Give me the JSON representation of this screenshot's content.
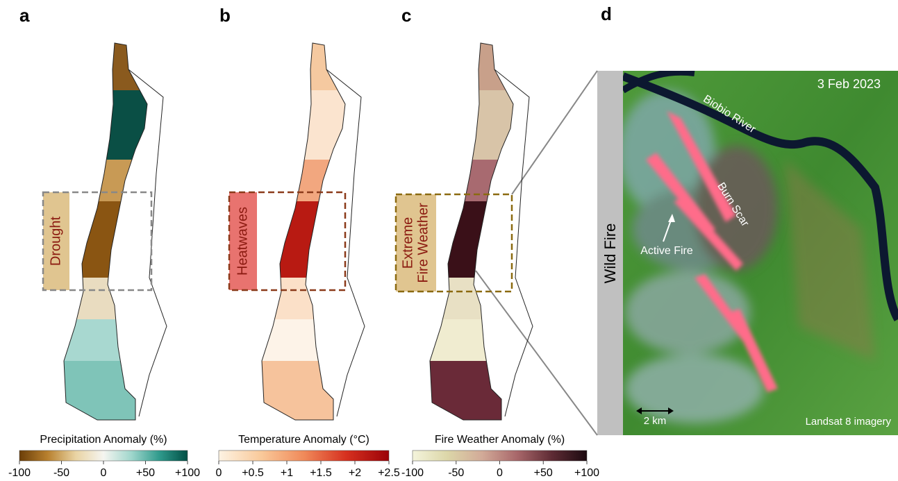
{
  "panels": [
    {
      "letter": "a",
      "label": [
        "Drought"
      ],
      "colorbar": {
        "title": "Precipitation Anomaly (%)",
        "lim": [
          -100,
          100
        ],
        "ticks": [
          -100,
          -50,
          0,
          {
            "value": 50,
            "label": "+50"
          },
          {
            "value": 100,
            "label": "+100"
          }
        ],
        "colors": [
          "#6b3e08",
          "#b8802e",
          "#e9d3a2",
          "#f5f5f0",
          "#9fd6cc",
          "#2f9a8c",
          "#014f45"
        ]
      }
    },
    {
      "letter": "b",
      "label": [
        "Heatwaves"
      ],
      "colorbar": {
        "title": "Temperature Anomaly (°C)",
        "lim": [
          0,
          2.5
        ],
        "ticks": [
          0,
          {
            "value": 0.5,
            "label": "+0.5"
          },
          {
            "value": 1,
            "label": "+1"
          },
          {
            "value": 1.5,
            "label": "+1.5"
          },
          {
            "value": 2,
            "label": "+2"
          },
          {
            "value": 2.5,
            "label": "+2.5"
          }
        ],
        "colors": [
          "#fdf3e3",
          "#f9c99a",
          "#f08a5a",
          "#d6301f",
          "#9b0208"
        ]
      }
    },
    {
      "letter": "c",
      "label": [
        "Extreme",
        "Fire Weather"
      ],
      "colorbar": {
        "title": "Fire Weather Anomaly (%)",
        "lim": [
          -100,
          100
        ],
        "ticks": [
          -100,
          -50,
          0,
          {
            "value": 50,
            "label": "+50"
          },
          {
            "value": 100,
            "label": "+100"
          }
        ],
        "colors": [
          "#f4f4dc",
          "#dcd6a8",
          "#d2aa98",
          "#a8676a",
          "#5e2b34",
          "#1c0a10"
        ]
      }
    }
  ],
  "satellite": {
    "letter": "d",
    "side_label": "Wild Fire",
    "date": "3 Feb 2023",
    "river": "Biobio River",
    "scar": "Burn Scar",
    "fire": "Active Fire",
    "scale": "2 km",
    "source": "Landsat 8 imagery"
  }
}
